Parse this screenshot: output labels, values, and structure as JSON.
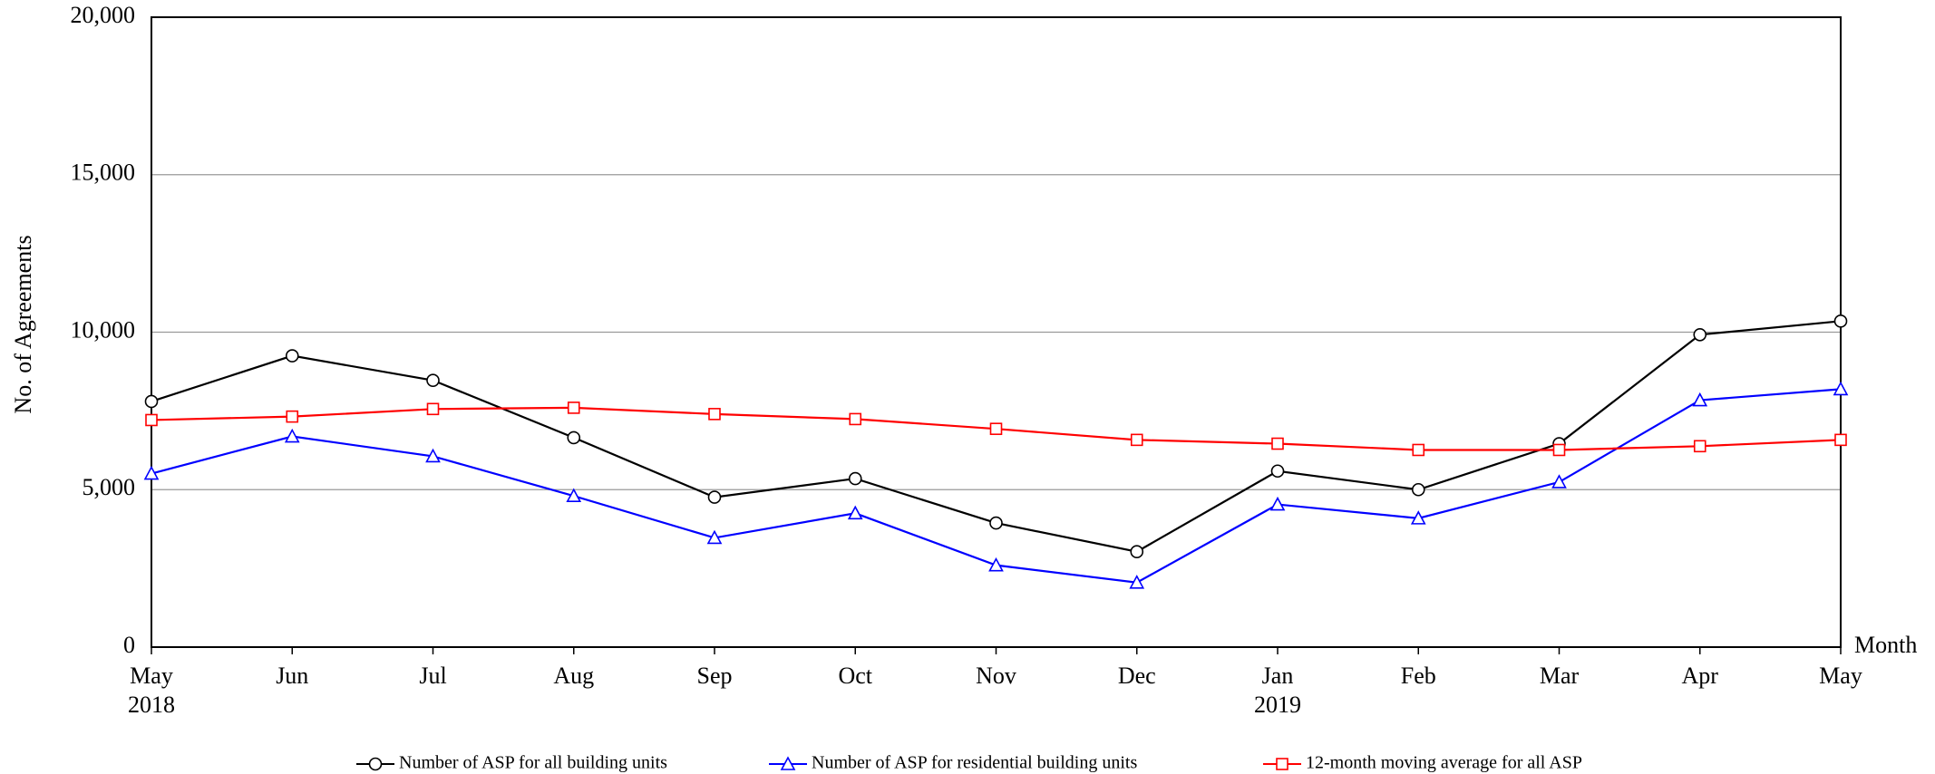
{
  "chart_data": {
    "type": "line",
    "y_label": "No. of Agreements",
    "x_label": "Month",
    "categories": [
      "May",
      "Jun",
      "Jul",
      "Aug",
      "Sep",
      "Oct",
      "Nov",
      "Dec",
      "Jan",
      "Feb",
      "Mar",
      "Apr",
      "May"
    ],
    "category_years": [
      "2018",
      null,
      null,
      null,
      null,
      null,
      null,
      null,
      "2019",
      null,
      null,
      null,
      null
    ],
    "ylim": [
      0,
      20000
    ],
    "yticks": [
      0,
      {
        "value": 5000,
        "label": "5,000"
      },
      {
        "value": 10000,
        "label": "10,000"
      },
      {
        "value": 15000,
        "label": "15,000"
      },
      {
        "value": 20000,
        "label": "20,000"
      }
    ],
    "grid": true,
    "series": [
      {
        "name": "Number of ASP for all building units",
        "color": "#000000",
        "marker": "circle",
        "values": [
          7800,
          9250,
          8470,
          6650,
          4760,
          5350,
          3940,
          3030,
          5590,
          5000,
          6460,
          9920,
          10350
        ]
      },
      {
        "name": "Number of ASP for residential building units",
        "color": "#0000ff",
        "marker": "triangle",
        "values": [
          5510,
          6690,
          6060,
          4800,
          3470,
          4250,
          2600,
          2050,
          4530,
          4090,
          5240,
          7840,
          8190
        ]
      },
      {
        "name": "12-month moving average for all ASP",
        "color": "#ff0000",
        "marker": "square",
        "values": [
          7210,
          7320,
          7560,
          7600,
          7400,
          7240,
          6930,
          6580,
          6460,
          6260,
          6260,
          6380,
          6580
        ]
      }
    ]
  }
}
